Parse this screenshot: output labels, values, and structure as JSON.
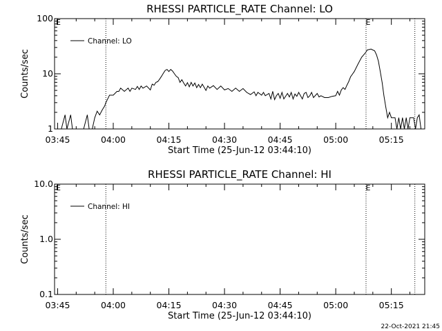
{
  "footer_timestamp": "22-Oct-2021 21:45",
  "chart_data": [
    {
      "type": "line",
      "title": "RHESSI PARTICLE_RATE Channel: LO",
      "xlabel": "Start Time (25-Jun-12 03:44:10)",
      "ylabel": "Counts/sec",
      "yscale": "log",
      "ylim": [
        1,
        100
      ],
      "ytick_values": [
        1,
        10,
        100
      ],
      "ytick_labels": [
        "1",
        "10",
        "100"
      ],
      "xlim": [
        "03:44:10",
        "05:24:00"
      ],
      "xtick_labels": [
        "03:45",
        "04:00",
        "04:15",
        "04:30",
        "04:45",
        "05:00",
        "05:15"
      ],
      "legend": {
        "position": "top-left",
        "label": "Channel: LO"
      },
      "markers": [
        {
          "time": "03:58:00",
          "label": ""
        },
        {
          "time": "05:08:10",
          "label": "E"
        },
        {
          "time": "05:21:20",
          "label": ""
        }
      ],
      "corner_label": "E",
      "series": [
        {
          "name": "Channel: LO",
          "points": [
            [
              "03:44:10",
              1
            ],
            [
              "03:46:00",
              1
            ],
            [
              "03:47:00",
              1.8
            ],
            [
              "03:47:30",
              1
            ],
            [
              "03:48:30",
              1.8
            ],
            [
              "03:49:00",
              1
            ],
            [
              "03:52:00",
              1
            ],
            [
              "03:53:00",
              1.8
            ],
            [
              "03:53:30",
              1
            ],
            [
              "03:54:20",
              1
            ],
            [
              "03:55:00",
              1.6
            ],
            [
              "03:55:40",
              2.1
            ],
            [
              "03:56:20",
              1.8
            ],
            [
              "03:57:00",
              2.2
            ],
            [
              "03:57:40",
              2.6
            ],
            [
              "03:58:00",
              3.0
            ],
            [
              "03:59:00",
              4.1
            ],
            [
              "04:00:00",
              4.1
            ],
            [
              "04:01:00",
              4.8
            ],
            [
              "04:01:30",
              4.8
            ],
            [
              "04:02:00",
              5.5
            ],
            [
              "04:03:00",
              4.8
            ],
            [
              "04:04:00",
              5.5
            ],
            [
              "04:04:30",
              4.8
            ],
            [
              "04:05:00",
              5.5
            ],
            [
              "04:06:00",
              5.2
            ],
            [
              "04:06:30",
              5.9
            ],
            [
              "04:07:00",
              5.2
            ],
            [
              "04:07:30",
              6.0
            ],
            [
              "04:08:00",
              5.5
            ],
            [
              "04:09:00",
              6.0
            ],
            [
              "04:10:00",
              5.1
            ],
            [
              "04:10:30",
              6.5
            ],
            [
              "04:11:00",
              6.2
            ],
            [
              "04:11:30",
              7.0
            ],
            [
              "04:12:00",
              7.2
            ],
            [
              "04:12:30",
              8.0
            ],
            [
              "04:13:00",
              9.0
            ],
            [
              "04:13:30",
              10.2
            ],
            [
              "04:14:00",
              11.5
            ],
            [
              "04:14:30",
              12.0
            ],
            [
              "04:15:00",
              11.0
            ],
            [
              "04:15:30",
              12.0
            ],
            [
              "04:16:00",
              11.2
            ],
            [
              "04:16:30",
              10.0
            ],
            [
              "04:17:00",
              9.0
            ],
            [
              "04:17:30",
              8.5
            ],
            [
              "04:18:00",
              7.0
            ],
            [
              "04:18:30",
              7.8
            ],
            [
              "04:19:00",
              6.8
            ],
            [
              "04:19:30",
              6.0
            ],
            [
              "04:20:00",
              6.9
            ],
            [
              "04:20:30",
              5.8
            ],
            [
              "04:21:00",
              7.0
            ],
            [
              "04:21:30",
              6.0
            ],
            [
              "04:22:00",
              6.8
            ],
            [
              "04:22:30",
              5.6
            ],
            [
              "04:23:00",
              6.4
            ],
            [
              "04:23:30",
              5.6
            ],
            [
              "04:24:00",
              6.5
            ],
            [
              "04:25:00",
              5.0
            ],
            [
              "04:25:30",
              6.0
            ],
            [
              "04:26:00",
              5.5
            ],
            [
              "04:27:00",
              6.1
            ],
            [
              "04:28:00",
              5.2
            ],
            [
              "04:29:00",
              6.0
            ],
            [
              "04:30:00",
              5.1
            ],
            [
              "04:31:00",
              5.4
            ],
            [
              "04:32:00",
              4.8
            ],
            [
              "04:33:00",
              5.5
            ],
            [
              "04:34:00",
              4.8
            ],
            [
              "04:35:00",
              5.4
            ],
            [
              "04:36:00",
              4.6
            ],
            [
              "04:37:00",
              4.2
            ],
            [
              "04:38:00",
              4.7
            ],
            [
              "04:38:30",
              4.0
            ],
            [
              "04:39:00",
              4.6
            ],
            [
              "04:40:00",
              4.1
            ],
            [
              "04:40:30",
              4.6
            ],
            [
              "04:41:00",
              4.0
            ],
            [
              "04:42:00",
              4.4
            ],
            [
              "04:42:30",
              3.5
            ],
            [
              "04:43:00",
              4.8
            ],
            [
              "04:43:30",
              3.4
            ],
            [
              "04:44:00",
              4.0
            ],
            [
              "04:44:30",
              4.4
            ],
            [
              "04:45:00",
              3.6
            ],
            [
              "04:45:30",
              4.6
            ],
            [
              "04:46:00",
              3.5
            ],
            [
              "04:47:00",
              4.4
            ],
            [
              "04:47:30",
              3.8
            ],
            [
              "04:48:00",
              4.6
            ],
            [
              "04:48:30",
              3.5
            ],
            [
              "04:49:00",
              4.3
            ],
            [
              "04:49:30",
              3.9
            ],
            [
              "04:50:00",
              4.6
            ],
            [
              "04:51:00",
              3.5
            ],
            [
              "04:51:30",
              4.4
            ],
            [
              "04:52:00",
              4.6
            ],
            [
              "04:52:30",
              3.7
            ],
            [
              "04:53:00",
              4.0
            ],
            [
              "04:53:30",
              4.6
            ],
            [
              "04:54:00",
              3.7
            ],
            [
              "04:55:00",
              4.4
            ],
            [
              "04:55:30",
              3.8
            ],
            [
              "04:56:00",
              4.0
            ],
            [
              "04:57:00",
              3.7
            ],
            [
              "04:58:00",
              3.7
            ],
            [
              "04:59:00",
              3.9
            ],
            [
              "05:00:00",
              4.0
            ],
            [
              "05:00:30",
              4.8
            ],
            [
              "05:01:00",
              4.1
            ],
            [
              "05:01:30",
              5.1
            ],
            [
              "05:02:00",
              5.6
            ],
            [
              "05:02:30",
              5.2
            ],
            [
              "05:03:00",
              6.2
            ],
            [
              "05:03:30",
              7.2
            ],
            [
              "05:04:00",
              8.8
            ],
            [
              "05:05:00",
              11.0
            ],
            [
              "05:06:00",
              15.0
            ],
            [
              "05:07:00",
              20.0
            ],
            [
              "05:08:00",
              24.0
            ],
            [
              "05:08:30",
              27.0
            ],
            [
              "05:09:30",
              28.0
            ],
            [
              "05:10:30",
              26.0
            ],
            [
              "05:11:00",
              22.0
            ],
            [
              "05:11:30",
              17.0
            ],
            [
              "05:12:00",
              11.0
            ],
            [
              "05:12:30",
              7.0
            ],
            [
              "05:13:00",
              4.0
            ],
            [
              "05:13:30",
              2.5
            ],
            [
              "05:14:00",
              1.6
            ],
            [
              "05:14:30",
              2.0
            ],
            [
              "05:15:00",
              1.6
            ],
            [
              "05:16:00",
              1.6
            ],
            [
              "05:16:30",
              1
            ],
            [
              "05:17:00",
              1.6
            ],
            [
              "05:17:30",
              1
            ],
            [
              "05:18:00",
              1.6
            ],
            [
              "05:18:30",
              1
            ],
            [
              "05:19:00",
              1.6
            ],
            [
              "05:19:30",
              1
            ],
            [
              "05:20:00",
              1.6
            ],
            [
              "05:21:00",
              1.6
            ],
            [
              "05:21:30",
              1
            ],
            [
              "05:22:00",
              1.6
            ],
            [
              "05:22:30",
              1.8
            ],
            [
              "05:23:00",
              1
            ]
          ]
        }
      ]
    },
    {
      "type": "line",
      "title": "RHESSI PARTICLE_RATE Channel: HI",
      "xlabel": "Start Time (25-Jun-12 03:44:10)",
      "ylabel": "Counts/sec",
      "yscale": "log",
      "ylim": [
        0.1,
        10
      ],
      "ytick_values": [
        0.1,
        1,
        10
      ],
      "ytick_labels": [
        "0.1",
        "1.0",
        "10.0"
      ],
      "xlim": [
        "03:44:10",
        "05:24:00"
      ],
      "xtick_labels": [
        "03:45",
        "04:00",
        "04:15",
        "04:30",
        "04:45",
        "05:00",
        "05:15"
      ],
      "legend": {
        "position": "top-left",
        "label": "Channel: HI"
      },
      "markers": [
        {
          "time": "03:58:00",
          "label": ""
        },
        {
          "time": "05:08:10",
          "label": "E"
        },
        {
          "time": "05:21:20",
          "label": ""
        }
      ],
      "corner_label": "E",
      "series": [
        {
          "name": "Channel: HI",
          "points": []
        }
      ]
    }
  ]
}
